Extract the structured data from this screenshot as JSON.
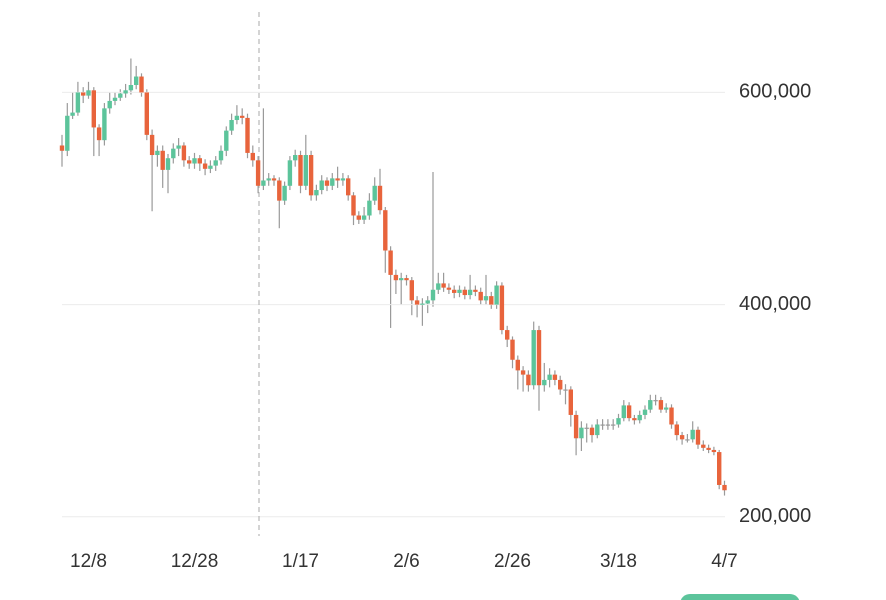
{
  "chart_data": {
    "type": "candlestick",
    "categories": [
      null,
      null,
      null,
      null,
      null,
      "12/8",
      null,
      null,
      null,
      null,
      null,
      null,
      null,
      null,
      null,
      null,
      null,
      null,
      null,
      null,
      null,
      null,
      null,
      null,
      null,
      "12/28",
      null,
      null,
      null,
      null,
      null,
      null,
      null,
      null,
      null,
      null,
      null,
      null,
      null,
      null,
      null,
      null,
      null,
      null,
      null,
      "1/17",
      null,
      null,
      null,
      null,
      null,
      null,
      null,
      null,
      null,
      null,
      null,
      null,
      null,
      null,
      null,
      null,
      null,
      null,
      null,
      "2/6",
      null,
      null,
      null,
      null,
      null,
      null,
      null,
      null,
      null,
      null,
      null,
      null,
      null,
      null,
      null,
      null,
      null,
      null,
      null,
      "2/26",
      null,
      null,
      null,
      null,
      null,
      null,
      null,
      null,
      null,
      null,
      null,
      null,
      null,
      null,
      null,
      null,
      null,
      null,
      null,
      "3/18",
      null,
      null,
      null,
      null,
      null,
      null,
      null,
      null,
      null,
      null,
      null,
      null,
      null,
      null,
      null,
      null,
      null,
      null,
      null,
      "4/7"
    ],
    "open": [
      550000,
      545000,
      578000,
      581000,
      600000,
      597000,
      602000,
      567000,
      555000,
      585000,
      592000,
      595000,
      599000,
      602000,
      607000,
      615000,
      600000,
      560000,
      541000,
      545000,
      527000,
      538000,
      547000,
      550000,
      536000,
      533000,
      538000,
      533000,
      528000,
      531000,
      536000,
      545000,
      564000,
      574000,
      578000,
      576000,
      543000,
      536000,
      512000,
      517000,
      519000,
      517000,
      498000,
      512000,
      536000,
      541000,
      512000,
      541000,
      503000,
      508000,
      517000,
      512000,
      519000,
      517000,
      519000,
      503000,
      484000,
      480000,
      484000,
      498000,
      512000,
      489000,
      451000,
      428000,
      423000,
      425000,
      423000,
      404000,
      400000,
      401000,
      404000,
      414000,
      420000,
      416000,
      414000,
      411000,
      414000,
      409000,
      414000,
      412000,
      404000,
      408000,
      400000,
      418000,
      376000,
      367000,
      348000,
      338000,
      334000,
      324000,
      376000,
      324000,
      329000,
      334000,
      329000,
      320000,
      320000,
      296000,
      274000,
      284000,
      284000,
      277000,
      287000,
      287000,
      287000,
      287000,
      293000,
      305000,
      293000,
      291000,
      296000,
      301000,
      310000,
      310000,
      301000,
      303000,
      287000,
      277000,
      273000,
      273000,
      282000,
      268000,
      265000,
      263000,
      261000,
      230000
    ],
    "high": [
      560000,
      590000,
      600000,
      610000,
      605000,
      610000,
      605000,
      570000,
      590000,
      600000,
      600000,
      603000,
      608000,
      632000,
      625000,
      618000,
      603000,
      565000,
      550000,
      550000,
      542000,
      552000,
      557000,
      553000,
      540000,
      543000,
      541000,
      537000,
      536000,
      540000,
      550000,
      568000,
      580000,
      588000,
      585000,
      580000,
      550000,
      540000,
      585000,
      524000,
      522000,
      520000,
      516000,
      540000,
      546000,
      545000,
      560000,
      545000,
      513000,
      522000,
      520000,
      524000,
      530000,
      524000,
      522000,
      506000,
      488000,
      492000,
      505000,
      520000,
      528000,
      492000,
      455000,
      433000,
      430000,
      428000,
      426000,
      408000,
      406000,
      408000,
      525000,
      430000,
      430000,
      420000,
      418000,
      418000,
      417000,
      428000,
      418000,
      416000,
      428000,
      412000,
      422000,
      421000,
      380000,
      370000,
      352000,
      342000,
      338000,
      384000,
      380000,
      345000,
      340000,
      338000,
      333000,
      325000,
      323000,
      300000,
      290000,
      288000,
      287000,
      292000,
      292000,
      292000,
      292000,
      297000,
      310000,
      308000,
      296000,
      300000,
      305000,
      315000,
      315000,
      313000,
      307000,
      306000,
      290000,
      280000,
      278000,
      290000,
      285000,
      272000,
      268000,
      266000,
      263000,
      234000
    ],
    "low": [
      530000,
      540000,
      575000,
      578000,
      590000,
      594000,
      540000,
      540000,
      550000,
      580000,
      588000,
      592000,
      595000,
      598000,
      603000,
      596000,
      555000,
      488000,
      530000,
      510000,
      505000,
      533000,
      540000,
      530000,
      528000,
      528000,
      526000,
      522000,
      524000,
      526000,
      532000,
      540000,
      560000,
      570000,
      570000,
      538000,
      530000,
      505000,
      508000,
      512000,
      512000,
      472000,
      494000,
      508000,
      530000,
      505000,
      508000,
      498000,
      498000,
      504000,
      507000,
      508000,
      510000,
      512000,
      498000,
      475000,
      476000,
      476000,
      480000,
      494000,
      485000,
      430000,
      378000,
      410000,
      400000,
      418000,
      390000,
      388000,
      380000,
      392000,
      398000,
      410000,
      412000,
      410000,
      406000,
      407000,
      405000,
      405000,
      408000,
      400000,
      400000,
      396000,
      396000,
      372000,
      360000,
      340000,
      320000,
      318000,
      318000,
      320000,
      300000,
      318000,
      322000,
      324000,
      315000,
      306000,
      285000,
      258000,
      262000,
      270000,
      270000,
      274000,
      282000,
      282000,
      282000,
      284000,
      290000,
      290000,
      287000,
      288000,
      292000,
      298000,
      305000,
      298000,
      298000,
      283000,
      272000,
      268000,
      270000,
      270000,
      264000,
      262000,
      260000,
      258000,
      226000,
      220000
    ],
    "close": [
      545000,
      578000,
      581000,
      600000,
      597000,
      602000,
      567000,
      555000,
      585000,
      592000,
      595000,
      599000,
      602000,
      607000,
      615000,
      600000,
      560000,
      541000,
      545000,
      527000,
      538000,
      547000,
      550000,
      536000,
      533000,
      538000,
      533000,
      528000,
      531000,
      536000,
      545000,
      564000,
      574000,
      578000,
      576000,
      543000,
      536000,
      512000,
      517000,
      519000,
      517000,
      498000,
      512000,
      536000,
      541000,
      512000,
      541000,
      503000,
      508000,
      517000,
      512000,
      519000,
      517000,
      519000,
      503000,
      484000,
      480000,
      484000,
      498000,
      512000,
      489000,
      451000,
      428000,
      423000,
      425000,
      423000,
      404000,
      400000,
      401000,
      404000,
      414000,
      420000,
      416000,
      414000,
      411000,
      414000,
      409000,
      414000,
      412000,
      404000,
      408000,
      400000,
      418000,
      376000,
      367000,
      348000,
      338000,
      334000,
      324000,
      376000,
      324000,
      329000,
      334000,
      329000,
      320000,
      320000,
      296000,
      274000,
      284000,
      284000,
      277000,
      287000,
      287000,
      287000,
      287000,
      293000,
      305000,
      293000,
      291000,
      296000,
      301000,
      310000,
      310000,
      301000,
      303000,
      287000,
      277000,
      273000,
      273000,
      282000,
      268000,
      265000,
      263000,
      261000,
      230000,
      225000
    ],
    "up_color": "#5cc49b",
    "down_color": "#e8643c",
    "ylim": [
      180000,
      640000
    ],
    "yticks": [
      {
        "value": 200000,
        "label": "200,000"
      },
      {
        "value": 400000,
        "label": "400,000"
      },
      {
        "value": 600000,
        "label": "600,000"
      }
    ],
    "grid": true
  }
}
